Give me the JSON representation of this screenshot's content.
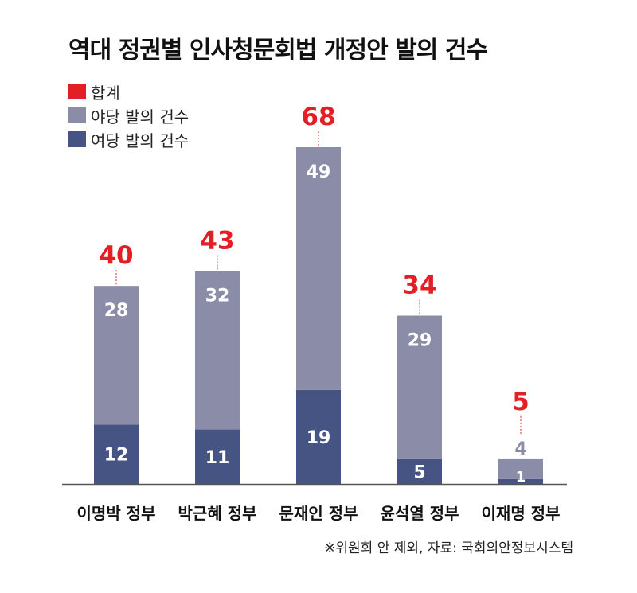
{
  "title": "역대 정권별 인사청문회법 개정안 발의 건수",
  "legend": [
    {
      "label": "합계",
      "color": "#e31e24"
    },
    {
      "label": "야당 발의 건수",
      "color": "#8a8ca8"
    },
    {
      "label": "여당 발의 건수",
      "color": "#465484"
    }
  ],
  "source": "※위원회 안 제외, 자료: 국회의안정보시스템",
  "chart_data": {
    "type": "bar",
    "stacked": true,
    "categories": [
      "이명박 정부",
      "박근혜 정부",
      "문재인 정부",
      "윤석열 정부",
      "이재명 정부"
    ],
    "series": [
      {
        "name": "여당 발의 건수",
        "values": [
          12,
          11,
          19,
          5,
          1
        ],
        "color": "#465484"
      },
      {
        "name": "야당 발의 건수",
        "values": [
          28,
          32,
          49,
          29,
          4
        ],
        "color": "#8a8ca8"
      }
    ],
    "totals": {
      "name": "합계",
      "values": [
        40,
        43,
        68,
        34,
        5
      ],
      "color": "#e31e24"
    },
    "ylim": [
      0,
      68
    ],
    "grid": false,
    "legend_position": "top-left"
  }
}
